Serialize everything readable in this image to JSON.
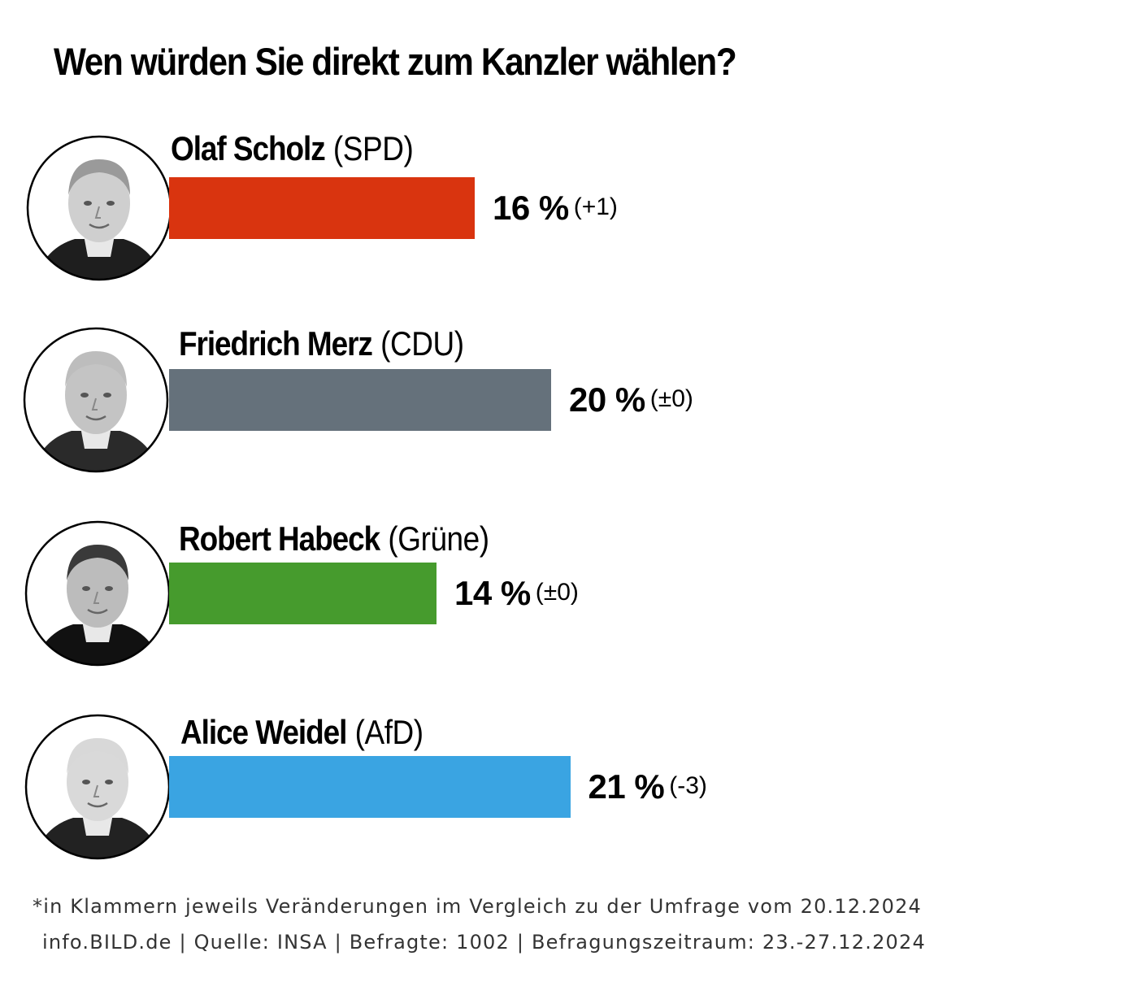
{
  "chart_data": {
    "type": "bar",
    "orientation": "horizontal",
    "title": "Wen würden Sie direkt zum Kanzler wählen?",
    "unit": "%",
    "value_suffix": " %",
    "xlim": [
      0,
      25
    ],
    "items": [
      {
        "name": "Olaf Scholz",
        "party": "(SPD)",
        "value": 16,
        "change": "(+1)",
        "color": "#d9340f",
        "avatar_icon": "portrait-olaf-scholz"
      },
      {
        "name": "Friedrich Merz",
        "party": "(CDU)",
        "value": 20,
        "change": "(±0)",
        "color": "#65717b",
        "avatar_icon": "portrait-friedrich-merz"
      },
      {
        "name": "Robert Habeck",
        "party": "(Grüne)",
        "value": 14,
        "change": "(±0)",
        "color": "#469b2d",
        "avatar_icon": "portrait-robert-habeck"
      },
      {
        "name": "Alice Weidel",
        "party": "(AfD)",
        "value": 21,
        "change": "(-3)",
        "color": "#3aa4e2",
        "avatar_icon": "portrait-alice-weidel"
      }
    ]
  },
  "footnote": {
    "line1": "*in Klammern jeweils Veränderungen im Vergleich zu der Umfrage vom 20.12.2024",
    "line2": "info.BILD.de | Quelle: INSA | Befragte: 1002 | Befragungszeitraum: 23.-27.12.2024"
  }
}
